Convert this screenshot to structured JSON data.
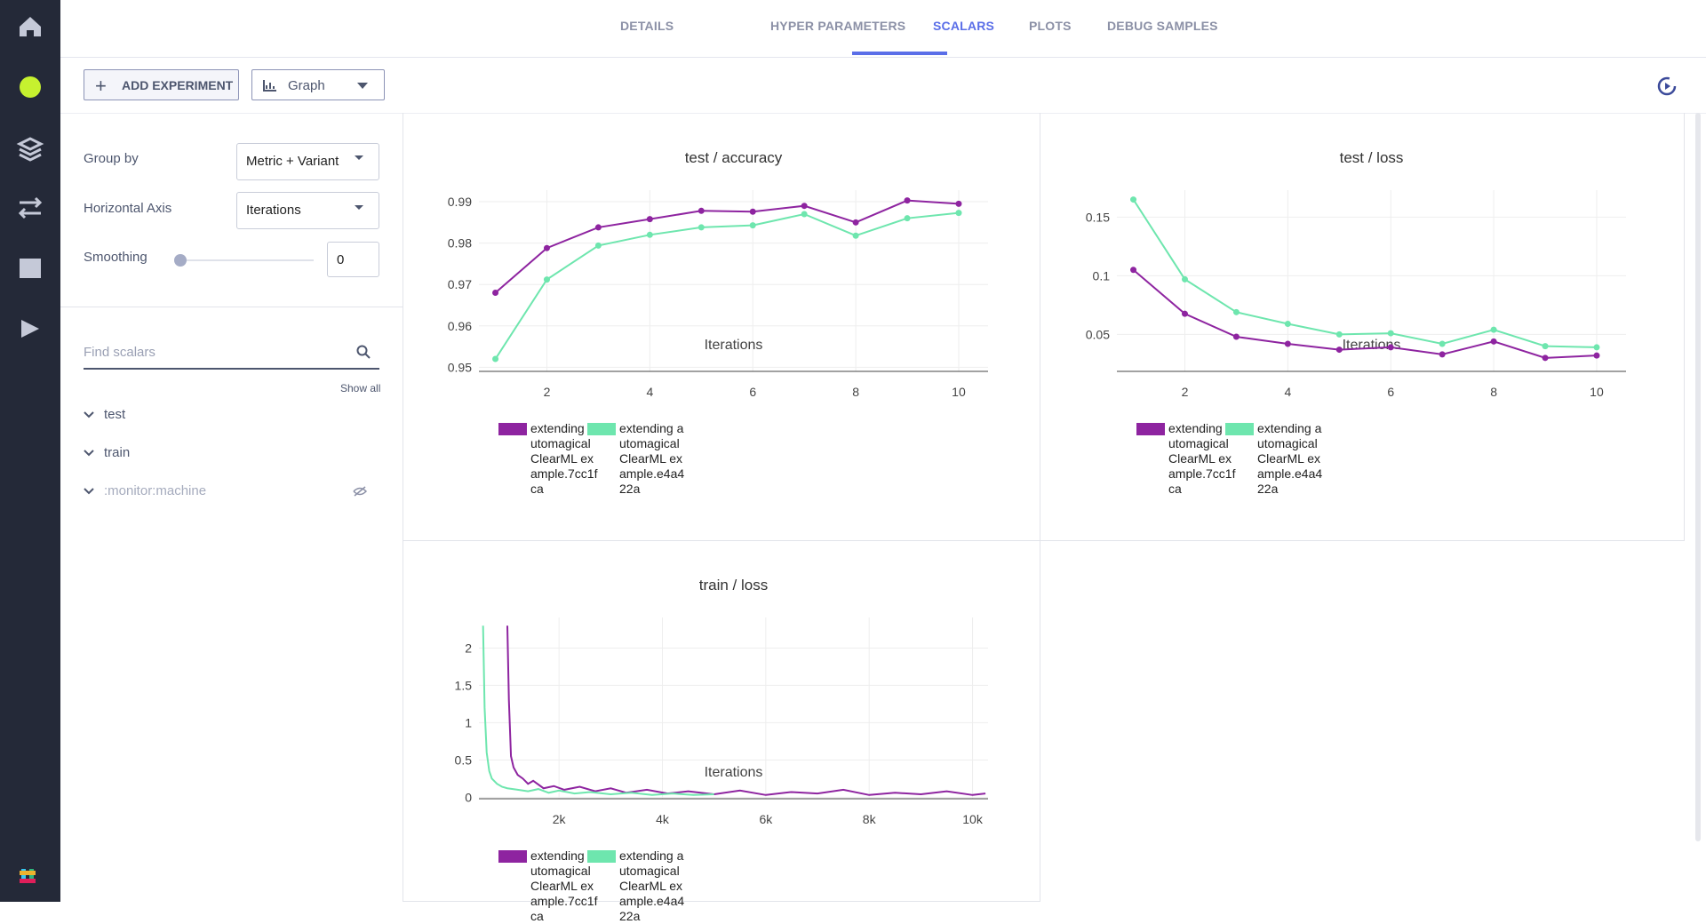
{
  "tabs": [
    "DETAILS",
    "HYPER PARAMETERS",
    "SCALARS",
    "PLOTS",
    "DEBUG SAMPLES"
  ],
  "toolbar": {
    "add_experiment": "ADD EXPERIMENT",
    "view": "Graph"
  },
  "settings": {
    "group_by_label": "Group by",
    "group_by_value": "Metric + Variant",
    "axis_label": "Horizontal Axis",
    "axis_value": "Iterations",
    "smoothing_label": "Smoothing",
    "smoothing_value": 0
  },
  "search": {
    "placeholder": "Find scalars",
    "show_all": "Show all"
  },
  "tree": [
    "test",
    "train",
    ":monitor:machine"
  ],
  "chart_data": [
    {
      "type": "line",
      "title": "test / accuracy",
      "xlabel": "Iterations",
      "markers": true,
      "grid": true,
      "x": [
        1,
        2,
        3,
        4,
        5,
        6,
        7,
        8,
        9,
        10
      ],
      "series": [
        {
          "name": "extending automagical ClearML example.7cc1fca",
          "color": "#8e24a0",
          "values": [
            0.968,
            0.9788,
            0.9838,
            0.9858,
            0.9878,
            0.9876,
            0.989,
            0.985,
            0.9903,
            0.9895
          ]
        },
        {
          "name": "extending automagical ClearML example.e4a422a",
          "color": "#6ee6ae",
          "values": [
            0.952,
            0.9712,
            0.9794,
            0.982,
            0.9838,
            0.9843,
            0.987,
            0.9818,
            0.986,
            0.9873
          ]
        }
      ],
      "xlim": [
        0.68,
        10.57
      ],
      "ylim": [
        0.949,
        0.9928
      ],
      "xticks": [
        2,
        4,
        6,
        8,
        10
      ],
      "yticks": [
        0.95,
        0.96,
        0.97,
        0.98,
        0.99
      ]
    },
    {
      "type": "line",
      "title": "test / loss",
      "xlabel": "Iterations",
      "markers": true,
      "grid": true,
      "x": [
        1,
        2,
        3,
        4,
        5,
        6,
        7,
        8,
        9,
        10
      ],
      "series": [
        {
          "name": "extending automagical ClearML example.7cc1fca",
          "color": "#8e24a0",
          "values": [
            0.105,
            0.0676,
            0.048,
            0.042,
            0.037,
            0.039,
            0.033,
            0.044,
            0.03,
            0.032
          ]
        },
        {
          "name": "extending automagical ClearML example.e4a422a",
          "color": "#6ee6ae",
          "values": [
            0.165,
            0.097,
            0.069,
            0.059,
            0.05,
            0.051,
            0.042,
            0.054,
            0.04,
            0.039
          ]
        }
      ],
      "xlim": [
        0.68,
        10.57
      ],
      "ylim": [
        0.0185,
        0.173
      ],
      "xticks": [
        2,
        4,
        6,
        8,
        10
      ],
      "yticks": [
        0.05,
        0.1,
        0.15
      ]
    },
    {
      "type": "line",
      "title": "train / loss",
      "xlabel": "Iterations",
      "markers": false,
      "grid": true,
      "series": [
        {
          "name": "extending automagical ClearML example.7cc1fca",
          "color": "#8e24a0",
          "x": [
            1000,
            1030,
            1070,
            1120,
            1200,
            1300,
            1400,
            1500,
            1700,
            1900,
            2100,
            2400,
            2700,
            3000,
            3300,
            3700,
            4100,
            4500,
            5000,
            5500,
            6000,
            6500,
            7000,
            7500,
            8000,
            8500,
            9000,
            9500,
            10000,
            10250
          ],
          "values": [
            2.3,
            1.3,
            0.55,
            0.4,
            0.3,
            0.25,
            0.18,
            0.22,
            0.12,
            0.15,
            0.1,
            0.14,
            0.08,
            0.12,
            0.06,
            0.1,
            0.05,
            0.08,
            0.04,
            0.09,
            0.03,
            0.07,
            0.05,
            0.1,
            0.03,
            0.06,
            0.04,
            0.08,
            0.03,
            0.05
          ]
        },
        {
          "name": "extending automagical ClearML example.e4a422a",
          "color": "#6ee6ae",
          "x": [
            530,
            560,
            600,
            650,
            700,
            800,
            900,
            1000,
            1200,
            1400,
            1600,
            1800,
            2000,
            2300,
            2600,
            3000,
            3400,
            3800,
            4200,
            4600,
            5000
          ],
          "values": [
            2.3,
            1.2,
            0.6,
            0.35,
            0.25,
            0.18,
            0.14,
            0.12,
            0.1,
            0.08,
            0.11,
            0.06,
            0.09,
            0.05,
            0.07,
            0.04,
            0.06,
            0.03,
            0.05,
            0.03,
            0.04
          ]
        }
      ],
      "xlim": [
        450,
        10300
      ],
      "ylim": [
        -0.02,
        2.41
      ],
      "xticks": [
        {
          "value": 2000,
          "label": "2k"
        },
        {
          "value": 4000,
          "label": "4k"
        },
        {
          "value": 6000,
          "label": "6k"
        },
        {
          "value": 8000,
          "label": "8k"
        },
        {
          "value": 10000,
          "label": "10k"
        }
      ],
      "yticks": [
        0,
        0.5,
        1,
        1.5,
        2
      ]
    }
  ]
}
